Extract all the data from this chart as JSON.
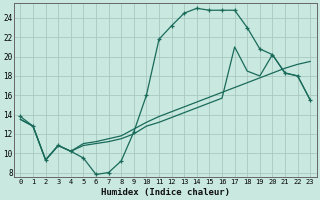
{
  "xlabel": "Humidex (Indice chaleur)",
  "bg_color": "#c8e8e0",
  "grid_color": "#a8c8c0",
  "line_color": "#1a6b5a",
  "xlim": [
    -0.5,
    23.5
  ],
  "ylim": [
    7.5,
    25.5
  ],
  "xticks": [
    0,
    1,
    2,
    3,
    4,
    5,
    6,
    7,
    8,
    9,
    10,
    11,
    12,
    13,
    14,
    15,
    16,
    17,
    18,
    19,
    20,
    21,
    22,
    23
  ],
  "yticks": [
    8,
    10,
    12,
    14,
    16,
    18,
    20,
    22,
    24
  ],
  "curve1_x": [
    0,
    1,
    2,
    3,
    4,
    5,
    6,
    7,
    8,
    9,
    10,
    11,
    12,
    13,
    14,
    15,
    16,
    17,
    18,
    19,
    20,
    21,
    22,
    23
  ],
  "curve1_y": [
    13.8,
    12.8,
    9.3,
    10.8,
    10.2,
    9.5,
    7.8,
    8.0,
    9.2,
    12.2,
    16.0,
    21.8,
    23.2,
    24.5,
    25.0,
    24.8,
    24.8,
    24.8,
    23.0,
    20.8,
    20.2,
    18.3,
    18.0,
    15.5
  ],
  "curve2_x": [
    0,
    1,
    2,
    3,
    4,
    5,
    6,
    7,
    8,
    9,
    10,
    11,
    12,
    13,
    14,
    15,
    16,
    17,
    18,
    19,
    20,
    21,
    22,
    23
  ],
  "curve2_y": [
    13.5,
    12.8,
    9.3,
    10.8,
    10.2,
    10.8,
    11.0,
    11.2,
    11.5,
    12.0,
    12.8,
    13.2,
    13.7,
    14.2,
    14.7,
    15.2,
    15.7,
    21.0,
    18.5,
    18.0,
    20.2,
    18.3,
    18.0,
    15.5
  ],
  "curve3_x": [
    0,
    1,
    2,
    3,
    4,
    5,
    6,
    7,
    8,
    9,
    10,
    11,
    12,
    13,
    14,
    15,
    16,
    17,
    18,
    19,
    20,
    21,
    22,
    23
  ],
  "curve3_y": [
    13.5,
    12.8,
    9.3,
    10.8,
    10.2,
    11.0,
    11.2,
    11.5,
    11.8,
    12.5,
    13.2,
    13.8,
    14.3,
    14.8,
    15.3,
    15.8,
    16.3,
    16.8,
    17.3,
    17.8,
    18.3,
    18.8,
    19.2,
    19.5
  ]
}
